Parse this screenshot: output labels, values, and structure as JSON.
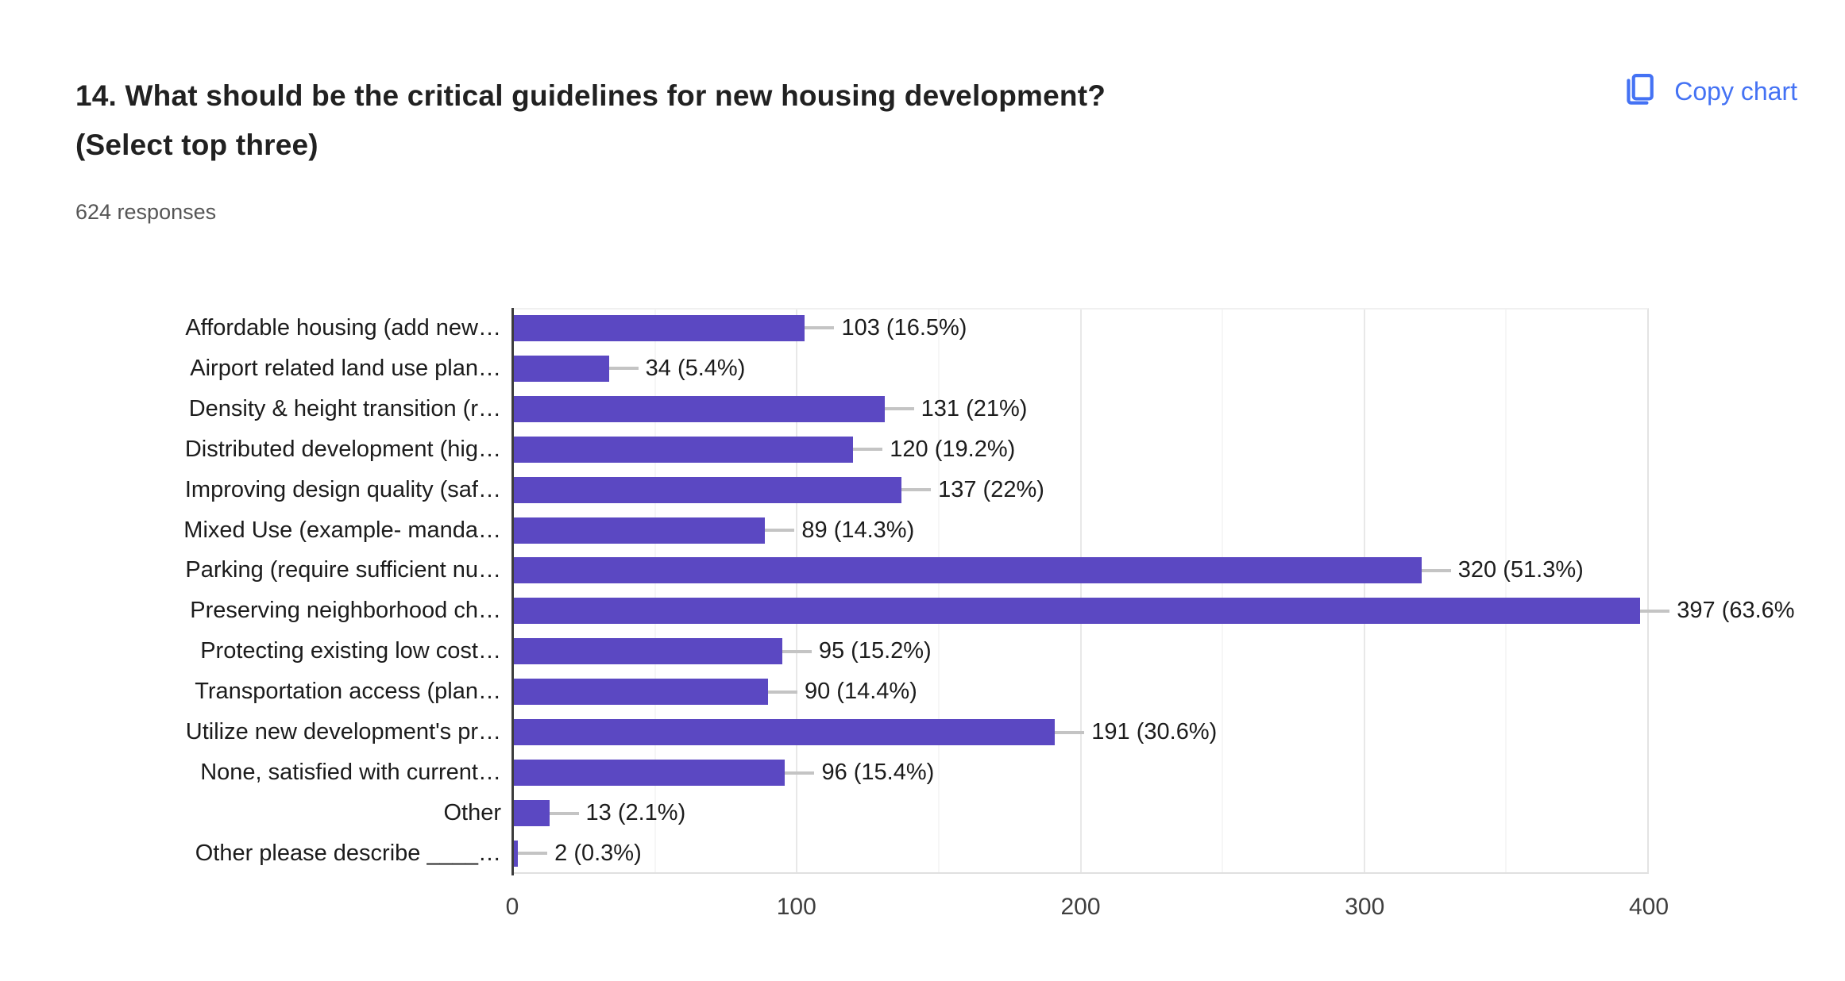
{
  "header": {
    "title_lines": [
      "14. What should be the critical guidelines for new housing development?",
      "(Select top three)"
    ],
    "responses_text": "624 responses",
    "copy_chart_label": "Copy chart"
  },
  "colors": {
    "bar": "#5b48c2",
    "accent_blue": "#4472f4",
    "axis_line": "#3c3c3c",
    "gridline_major": "#e8e8e8",
    "gridline_minor": "#f6f6f6",
    "leader_line": "#c4c4c4",
    "text_primary": "#212121",
    "text_secondary": "#565656"
  },
  "chart_data": {
    "type": "bar",
    "orientation": "horizontal",
    "title": "14. What should be the critical guidelines for new housing development? (Select top three)",
    "subtitle": "624 responses",
    "categories": [
      "Affordable housing (add new…",
      "Airport related land use plan…",
      "Density & height transition (r…",
      "Distributed development (hig…",
      "Improving design quality (saf…",
      "Mixed Use (example- manda…",
      "Parking (require sufficient nu…",
      "Preserving neighborhood ch…",
      "Protecting existing low cost…",
      "Transportation access (plan…",
      "Utilize new development's pr…",
      "None, satisfied with current…",
      "Other",
      "Other please describe ____…"
    ],
    "values": [
      103,
      34,
      131,
      120,
      137,
      89,
      320,
      397,
      95,
      90,
      191,
      96,
      13,
      2
    ],
    "percentages": [
      16.5,
      5.4,
      21,
      19.2,
      22,
      14.3,
      51.3,
      63.6,
      15.2,
      14.4,
      30.6,
      15.4,
      2.1,
      0.3
    ],
    "value_labels": [
      "103 (16.5%)",
      "34 (5.4%)",
      "131 (21%)",
      "120 (19.2%)",
      "137 (22%)",
      "89 (14.3%)",
      "320 (51.3%)",
      "397 (63.6%",
      "95 (15.2%)",
      "90 (14.4%)",
      "191 (30.6%)",
      "96 (15.4%)",
      "13 (2.1%)",
      "2 (0.3%)"
    ],
    "xlabel": "",
    "ylabel": "",
    "xlim": [
      0,
      400
    ],
    "x_ticks": [
      0,
      100,
      200,
      300,
      400
    ],
    "x_minor_step": 50,
    "grid": true,
    "legend": false
  }
}
